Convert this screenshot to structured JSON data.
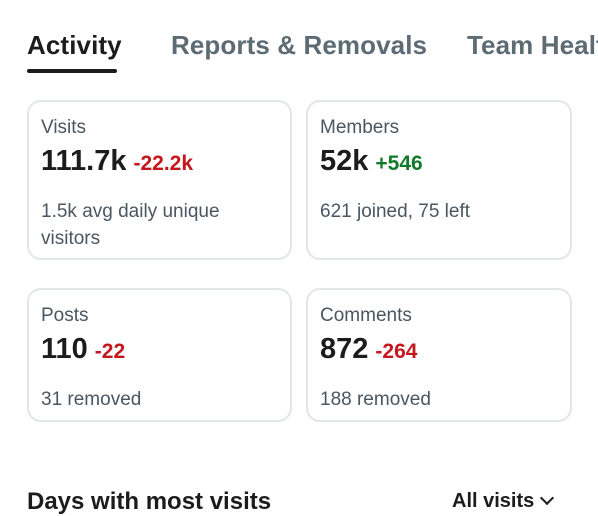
{
  "tabs": [
    {
      "label": "Activity",
      "active": true
    },
    {
      "label": "Reports & Removals",
      "active": false
    },
    {
      "label": "Team Health",
      "active": false
    }
  ],
  "cards": {
    "visits": {
      "label": "Visits",
      "value": "111.7k",
      "delta": "-22.2k",
      "sub": "1.5k avg daily unique visitors"
    },
    "members": {
      "label": "Members",
      "value": "52k",
      "delta": "+546",
      "sub": "621 joined, 75 left"
    },
    "posts": {
      "label": "Posts",
      "value": "110",
      "delta": "-22",
      "sub": "31 removed"
    },
    "comments": {
      "label": "Comments",
      "value": "872",
      "delta": "-264",
      "sub": "188 removed"
    }
  },
  "section": {
    "title": "Days with most visits",
    "filter_label": "All visits"
  },
  "colors": {
    "negative": "#c4161c",
    "positive": "#117a2d",
    "tab_inactive": "#5d6b75",
    "card_border": "#e3e6e8"
  }
}
